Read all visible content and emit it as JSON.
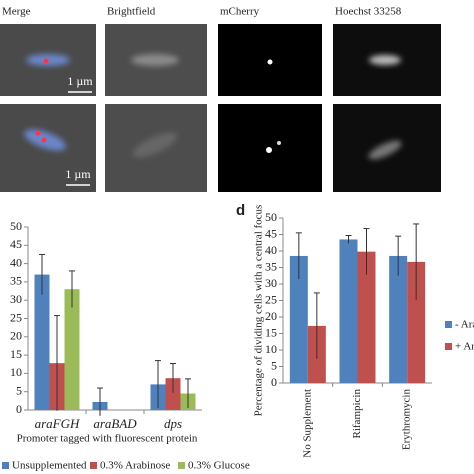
{
  "panel_labels": [
    "Merge",
    "Brightfield",
    "mCherry",
    "Hoechst 33258"
  ],
  "scale_bar": "1 µm",
  "panel_letter": "d",
  "chart_data": [
    {
      "type": "bar",
      "categories": [
        "araFGH",
        "araBAD",
        "dps"
      ],
      "xlabel": "Promoter tagged with fluorescent protein",
      "series": [
        {
          "name": "Unsupplemented",
          "color": "#4f81bd",
          "values": [
            37,
            2.2,
            7
          ],
          "errors": [
            5.5,
            3.8,
            6.5
          ]
        },
        {
          "name": "0.3% Arabinose",
          "color": "#c0504d",
          "values": [
            12.8,
            0,
            8.7
          ],
          "errors": [
            13,
            0,
            4
          ]
        },
        {
          "name": "0.3% Glucose",
          "color": "#9bbb59",
          "values": [
            33,
            0,
            4.5
          ],
          "errors": [
            5,
            0,
            4
          ]
        }
      ],
      "ylim": [
        0,
        50
      ],
      "yticks": [
        0,
        5,
        10,
        15,
        20,
        25,
        30,
        35,
        40,
        45,
        50
      ],
      "legend": "bottom"
    },
    {
      "type": "bar",
      "categories": [
        "No Supplement",
        "Rifampicin",
        "Erythromycin"
      ],
      "ylabel": "Percentage of dividing cells with a central focus",
      "series": [
        {
          "name": "- Ara",
          "color": "#4f81bd",
          "values": [
            38.5,
            43.5,
            38.5
          ],
          "errors": [
            7,
            1.2,
            6
          ]
        },
        {
          "name": "+ Ara",
          "color": "#c0504d",
          "values": [
            17.3,
            39.8,
            36.7
          ],
          "errors": [
            10,
            7,
            11.5
          ]
        }
      ],
      "ylim": [
        0,
        50
      ],
      "yticks": [
        0,
        5,
        10,
        15,
        20,
        25,
        30,
        35,
        40,
        45,
        50
      ],
      "legend": "right"
    }
  ]
}
